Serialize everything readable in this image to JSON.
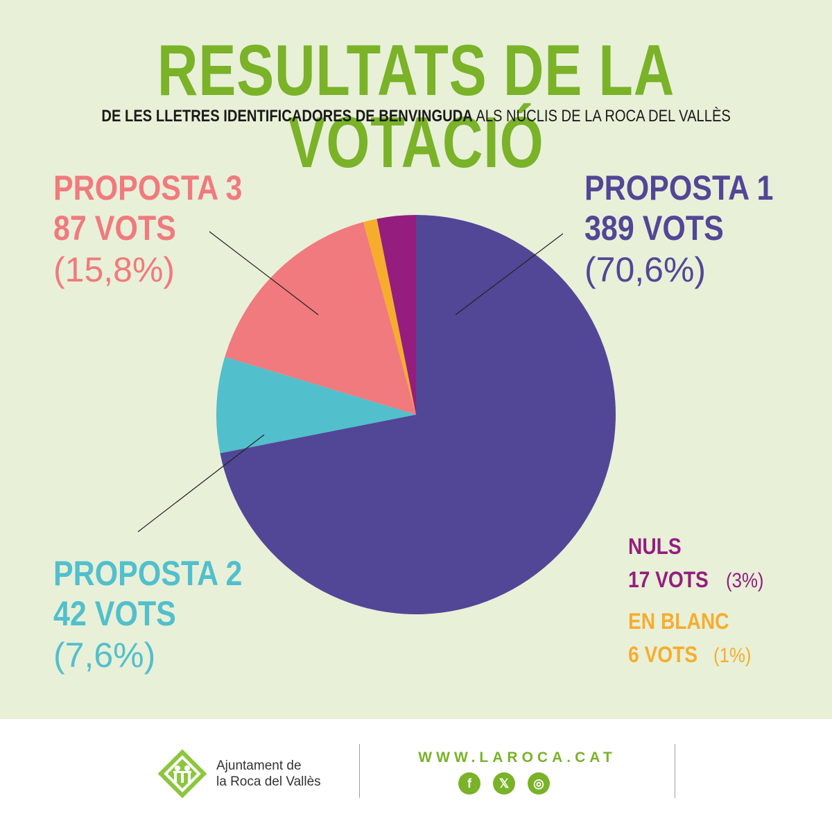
{
  "header": {
    "title": "RESULTATS DE LA VOTACIÓ",
    "subtitle_bold": "DE LES LLETRES IDENTIFICADORES DE BENVINGUDA",
    "subtitle_rest": "ALS NUCLIS DE LA ROCA DEL VALLÈS"
  },
  "labels": {
    "p1": {
      "name": "PROPOSTA 1",
      "votes": "389 VOTS",
      "pct": "(70,6%)"
    },
    "p2": {
      "name": "PROPOSTA 2",
      "votes": "42 VOTS",
      "pct": "(7,6%)"
    },
    "p3": {
      "name": "PROPOSTA 3",
      "votes": "87 VOTS",
      "pct": "(15,8%)"
    },
    "nuls": {
      "name": "NULS",
      "votes": "17 VOTS",
      "pct": "(3%)"
    },
    "blanc": {
      "name": "EN BLANC",
      "votes": "6 VOTS",
      "pct": "(1%)"
    }
  },
  "chart_data": {
    "type": "pie",
    "title": "RESULTATS DE LA VOTACIÓ",
    "slices": [
      {
        "name": "PROPOSTA 1",
        "votes": 389,
        "percent": 70.6,
        "color": "#514796"
      },
      {
        "name": "PROPOSTA 2",
        "votes": 42,
        "percent": 7.6,
        "color": "#52bfcc"
      },
      {
        "name": "PROPOSTA 3",
        "votes": 87,
        "percent": 15.8,
        "color": "#f07a7d"
      },
      {
        "name": "EN BLANC",
        "votes": 6,
        "percent": 1,
        "color": "#f6ad2e"
      },
      {
        "name": "NULS",
        "votes": 17,
        "percent": 3,
        "color": "#941d7e"
      }
    ]
  },
  "colors": {
    "title_green": "#7ab228",
    "background": "#e8f0d8",
    "proposta1": "#514796",
    "proposta2": "#52bfcc",
    "proposta3": "#f07a7d",
    "nuls": "#941d7e",
    "blanc": "#f6ad2e"
  },
  "footer": {
    "org_line1": "Ajuntament de",
    "org_line2": "la Roca del Vallès",
    "url": "WWW.LAROCA.CAT",
    "social": [
      {
        "icon": "facebook-icon",
        "glyph": "f"
      },
      {
        "icon": "x-icon",
        "glyph": "𝕏"
      },
      {
        "icon": "instagram-icon",
        "glyph": "◎"
      }
    ]
  }
}
